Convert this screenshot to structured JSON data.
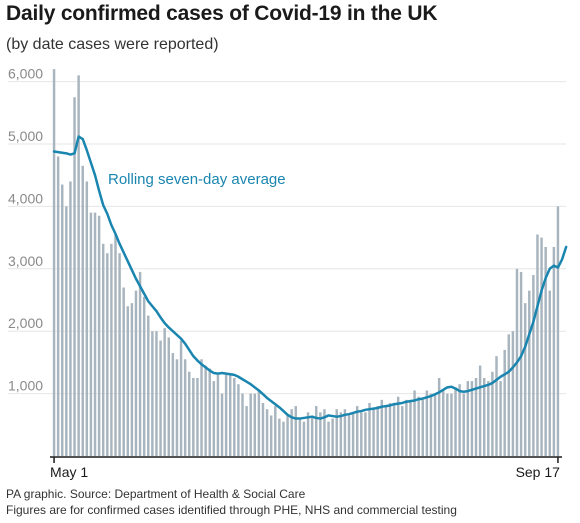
{
  "title": "Daily confirmed cases of Covid-19 in the UK",
  "subtitle": "(by date cases were reported)",
  "footer": {
    "source": "PA graphic. Source: Department of Health & Social Care",
    "note": "Figures are for confirmed cases identified through PHE, NHS and commercial testing"
  },
  "chart_data": {
    "type": "bar",
    "x_start_label": "May 1",
    "x_end_label": "Sep 17",
    "ylim": [
      0,
      6300
    ],
    "yticks": [
      {
        "value": 1000,
        "label": "1,000"
      },
      {
        "value": 2000,
        "label": "2,000"
      },
      {
        "value": 3000,
        "label": "3,000"
      },
      {
        "value": 4000,
        "label": "4,000"
      },
      {
        "value": 5000,
        "label": "5,000"
      },
      {
        "value": 6000,
        "label": "6,000"
      }
    ],
    "grid": true,
    "bar_color": "#a8b5bf",
    "line_color": "#1a86b0",
    "series": [
      {
        "type": "bar",
        "values": [
          6200,
          4800,
          4350,
          4000,
          4400,
          5750,
          6100,
          4650,
          4400,
          3900,
          3900,
          3850,
          3400,
          3250,
          3400,
          3550,
          3250,
          2700,
          2400,
          2450,
          2650,
          2950,
          2550,
          2250,
          2000,
          2000,
          1850,
          2050,
          1900,
          1650,
          1550,
          1850,
          1550,
          1350,
          1250,
          1250,
          1550,
          1450,
          1400,
          1200,
          1300,
          1000,
          1300,
          1300,
          1250,
          1150,
          1000,
          800,
          1000,
          1000,
          1050,
          850,
          750,
          650,
          800,
          600,
          550,
          650,
          750,
          800,
          600,
          550,
          700,
          650,
          800,
          700,
          750,
          550,
          600,
          750,
          700,
          750,
          650,
          700,
          800,
          700,
          700,
          850,
          750,
          800,
          900,
          800,
          850,
          850,
          950,
          800,
          900,
          900,
          1050,
          950,
          900,
          1050,
          1000,
          1000,
          1250,
          1050,
          1000,
          1000,
          1100,
          1150,
          1000,
          1200,
          1200,
          1250,
          1450,
          1250,
          1200,
          1350,
          1600,
          1200,
          1700,
          1950,
          2000,
          3000,
          2950,
          2450,
          2650,
          2900,
          3550,
          3500,
          3350,
          2650,
          3350,
          4000
        ]
      },
      {
        "type": "line",
        "name": "Rolling seven-day average",
        "values": [
          4880,
          4870,
          4860,
          4850,
          4830,
          4850,
          5120,
          5080,
          4900,
          4700,
          4500,
          4250,
          4020,
          3880,
          3700,
          3560,
          3400,
          3260,
          3120,
          2980,
          2840,
          2720,
          2600,
          2480,
          2400,
          2320,
          2220,
          2130,
          2060,
          2000,
          1940,
          1880,
          1800,
          1700,
          1600,
          1530,
          1470,
          1420,
          1370,
          1330,
          1320,
          1330,
          1320,
          1310,
          1300,
          1270,
          1230,
          1190,
          1150,
          1100,
          1050,
          990,
          930,
          880,
          830,
          780,
          720,
          660,
          620,
          600,
          600,
          610,
          620,
          630,
          610,
          600,
          620,
          650,
          640,
          630,
          640,
          660,
          670,
          690,
          710,
          720,
          740,
          750,
          760,
          770,
          790,
          800,
          810,
          830,
          840,
          850,
          870,
          880,
          890,
          910,
          920,
          940,
          960,
          990,
          1020,
          1060,
          1100,
          1110,
          1080,
          1040,
          1030,
          1040,
          1060,
          1080,
          1100,
          1120,
          1140,
          1170,
          1220,
          1270,
          1310,
          1350,
          1420,
          1500,
          1600,
          1750,
          1950,
          2150,
          2400,
          2650,
          2850,
          3000,
          3050,
          3020,
          3150,
          3350
        ]
      }
    ]
  }
}
